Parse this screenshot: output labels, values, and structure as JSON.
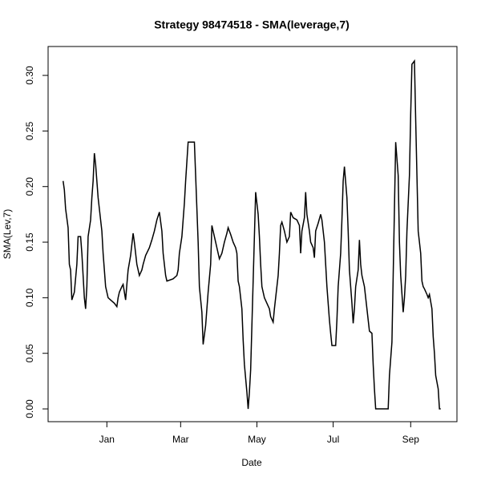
{
  "chart_data": {
    "type": "line",
    "title": "Strategy 98474518 - SMA(leverage,7)",
    "x_label": "Date",
    "y_label": "SMA(Lev,7)",
    "color": "#000000",
    "x": [
      -35,
      -34,
      -33,
      -31,
      -30,
      -29,
      -28,
      -26,
      -24,
      -23,
      -21,
      -20,
      -19,
      -18,
      -17,
      -16,
      -15,
      -13,
      -12,
      -11,
      -10,
      -9,
      -8,
      -7,
      -6,
      -4,
      -3,
      -2,
      -1,
      1,
      3,
      6,
      8,
      9,
      10,
      12,
      13,
      15,
      16,
      17,
      19,
      21,
      22,
      23,
      24,
      26,
      28,
      29,
      31,
      34,
      36,
      38,
      40,
      42,
      44,
      45,
      47,
      48,
      53,
      56,
      57,
      58,
      60,
      61,
      62,
      63,
      65,
      70,
      71,
      72,
      73,
      74,
      76,
      77,
      79,
      80,
      81,
      83,
      84,
      85,
      87,
      88,
      90,
      92,
      94,
      96,
      97,
      99,
      101,
      103,
      104,
      105,
      106,
      108,
      109,
      110,
      112,
      113,
      114,
      115,
      116,
      117,
      118,
      119,
      121,
      122,
      123,
      124,
      126,
      128,
      130,
      131,
      133,
      134,
      135,
      137,
      138,
      139,
      140,
      142,
      143,
      144,
      146,
      147,
      149,
      152,
      154,
      155,
      156,
      158,
      159,
      160,
      162,
      163,
      165,
      166,
      167,
      169,
      171,
      172,
      174,
      175,
      176,
      178,
      179,
      180,
      183,
      184,
      185,
      187,
      188,
      189,
      190,
      192,
      193,
      194,
      196,
      197,
      198,
      199,
      201,
      202,
      203,
      204,
      206,
      207,
      208,
      210,
      212,
      213,
      214,
      215,
      225,
      226,
      228,
      229,
      230,
      231,
      233,
      234,
      235,
      237,
      238,
      239,
      240,
      242,
      243,
      244,
      246,
      247,
      248,
      249,
      251,
      252,
      253,
      254,
      256,
      257,
      258,
      260,
      261,
      262,
      263,
      265,
      266,
      267
    ],
    "values": [
      0.205,
      0.197,
      0.18,
      0.163,
      0.13,
      0.125,
      0.098,
      0.105,
      0.13,
      0.155,
      0.155,
      0.14,
      0.12,
      0.1,
      0.09,
      0.11,
      0.155,
      0.17,
      0.19,
      0.205,
      0.23,
      0.22,
      0.205,
      0.19,
      0.18,
      0.16,
      0.14,
      0.125,
      0.11,
      0.1,
      0.098,
      0.095,
      0.092,
      0.1,
      0.105,
      0.11,
      0.112,
      0.098,
      0.112,
      0.125,
      0.138,
      0.158,
      0.15,
      0.14,
      0.13,
      0.12,
      0.125,
      0.13,
      0.138,
      0.145,
      0.152,
      0.16,
      0.17,
      0.177,
      0.16,
      0.14,
      0.12,
      0.115,
      0.117,
      0.12,
      0.125,
      0.14,
      0.155,
      0.17,
      0.185,
      0.205,
      0.24,
      0.24,
      0.21,
      0.18,
      0.15,
      0.11,
      0.087,
      0.058,
      0.075,
      0.09,
      0.105,
      0.13,
      0.165,
      0.16,
      0.15,
      0.145,
      0.135,
      0.14,
      0.15,
      0.158,
      0.163,
      0.157,
      0.15,
      0.145,
      0.14,
      0.115,
      0.11,
      0.09,
      0.062,
      0.04,
      0.015,
      0,
      0.015,
      0.035,
      0.075,
      0.115,
      0.155,
      0.195,
      0.175,
      0.155,
      0.13,
      0.11,
      0.1,
      0.095,
      0.09,
      0.083,
      0.078,
      0.09,
      0.1,
      0.12,
      0.14,
      0.165,
      0.168,
      0.16,
      0.155,
      0.15,
      0.155,
      0.177,
      0.172,
      0.17,
      0.165,
      0.14,
      0.16,
      0.172,
      0.195,
      0.175,
      0.16,
      0.15,
      0.145,
      0.136,
      0.16,
      0.167,
      0.175,
      0.17,
      0.15,
      0.13,
      0.11,
      0.08,
      0.068,
      0.057,
      0.057,
      0.08,
      0.11,
      0.14,
      0.17,
      0.205,
      0.218,
      0.19,
      0.16,
      0.125,
      0.095,
      0.077,
      0.09,
      0.11,
      0.125,
      0.152,
      0.13,
      0.12,
      0.11,
      0.1,
      0.09,
      0.07,
      0.068,
      0.04,
      0.018,
      0,
      0,
      0.03,
      0.06,
      0.12,
      0.18,
      0.24,
      0.21,
      0.15,
      0.12,
      0.087,
      0.1,
      0.12,
      0.16,
      0.21,
      0.265,
      0.31,
      0.313,
      0.26,
      0.21,
      0.16,
      0.14,
      0.115,
      0.11,
      0.108,
      0.103,
      0.1,
      0.103,
      0.09,
      0.065,
      0.05,
      0.03,
      0.018,
      0,
      0
    ],
    "xlim": [
      -47,
      280
    ],
    "ylim": [
      -0.0115,
      0.326
    ],
    "xticks": [
      {
        "value": 0,
        "label": "Jan"
      },
      {
        "value": 59,
        "label": "Mar"
      },
      {
        "value": 120,
        "label": "May"
      },
      {
        "value": 181,
        "label": "Jul"
      },
      {
        "value": 243,
        "label": "Sep"
      }
    ],
    "yticks": [
      {
        "value": 0,
        "label": "0.00"
      },
      0.05,
      {
        "value": 0.1,
        "label": "0.10"
      },
      0.15,
      {
        "value": 0.2,
        "label": "0.20"
      },
      0.25,
      {
        "value": 0.3,
        "label": "0.30"
      }
    ]
  }
}
